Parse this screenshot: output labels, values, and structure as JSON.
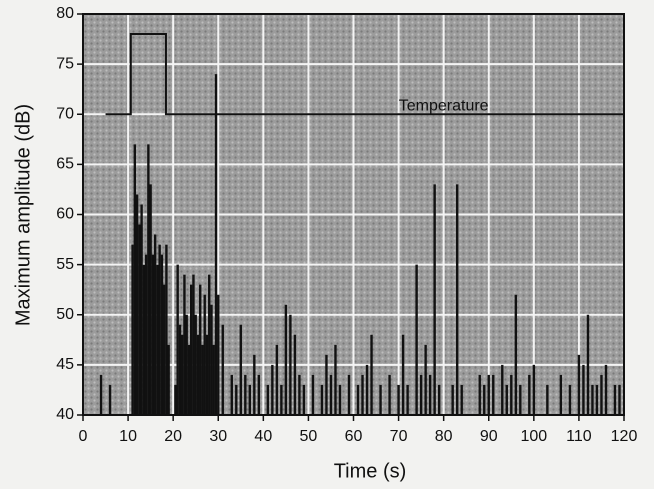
{
  "chart_data": {
    "type": "stem",
    "xlabel": "Time (s)",
    "ylabel": "Maximum amplitude (dB)",
    "xlim": [
      0,
      120
    ],
    "ylim": [
      40,
      80
    ],
    "xticks": [
      0,
      10,
      20,
      30,
      40,
      50,
      60,
      70,
      80,
      90,
      100,
      110,
      120
    ],
    "yticks": [
      40,
      45,
      50,
      55,
      60,
      65,
      70,
      75,
      80
    ],
    "grid": true,
    "color": "#111111",
    "spikes": {
      "x": [
        4,
        6,
        11,
        11.5,
        12,
        12.5,
        13,
        13.5,
        14,
        14.5,
        15,
        15.5,
        16,
        16.5,
        17,
        17.5,
        18,
        18.5,
        19,
        20.5,
        21,
        21.5,
        22,
        22.5,
        23,
        23.5,
        24,
        24.5,
        25,
        25.5,
        26,
        26.5,
        27,
        27.5,
        28,
        28.5,
        29,
        29.5,
        30,
        31,
        33,
        34,
        35,
        36,
        37,
        38,
        39,
        41,
        42,
        43,
        44,
        45,
        46,
        47,
        48,
        49,
        51,
        53,
        54,
        55,
        56,
        57,
        59,
        61,
        62,
        63,
        64,
        66,
        68,
        70,
        71,
        72,
        74,
        75,
        76,
        77,
        78,
        79,
        82,
        83,
        84,
        88,
        89,
        90,
        91,
        93,
        94,
        95,
        96,
        97,
        99,
        100,
        103,
        106,
        108,
        110,
        111,
        112,
        113,
        114,
        115,
        116,
        118,
        119
      ],
      "values": [
        44,
        43,
        57,
        67,
        62,
        59,
        61,
        55,
        56,
        67,
        63,
        56,
        58,
        55,
        57,
        56,
        53,
        57,
        47,
        43,
        55,
        49,
        48,
        54,
        50,
        47,
        53,
        54,
        50,
        48,
        53,
        47,
        52,
        48,
        54,
        51,
        47,
        74,
        52,
        49,
        44,
        43,
        49,
        44,
        43,
        46,
        44,
        43,
        45,
        47,
        43,
        51,
        50,
        48,
        44,
        43,
        44,
        43,
        46,
        44,
        47,
        43,
        44,
        43,
        44,
        45,
        48,
        43,
        44,
        43,
        48,
        43,
        55,
        44,
        47,
        44,
        63,
        43,
        43,
        63,
        43,
        44,
        43,
        44,
        44,
        45,
        43,
        44,
        52,
        43,
        44,
        45,
        43,
        44,
        43,
        46,
        45,
        50,
        43,
        43,
        44,
        45,
        43,
        43
      ]
    },
    "temperature": {
      "label": "Temperature",
      "color": "#111111",
      "x": [
        5,
        10.6,
        10.6,
        18.4,
        18.4,
        120
      ],
      "values": [
        70,
        70,
        78,
        78,
        70,
        70
      ]
    }
  }
}
